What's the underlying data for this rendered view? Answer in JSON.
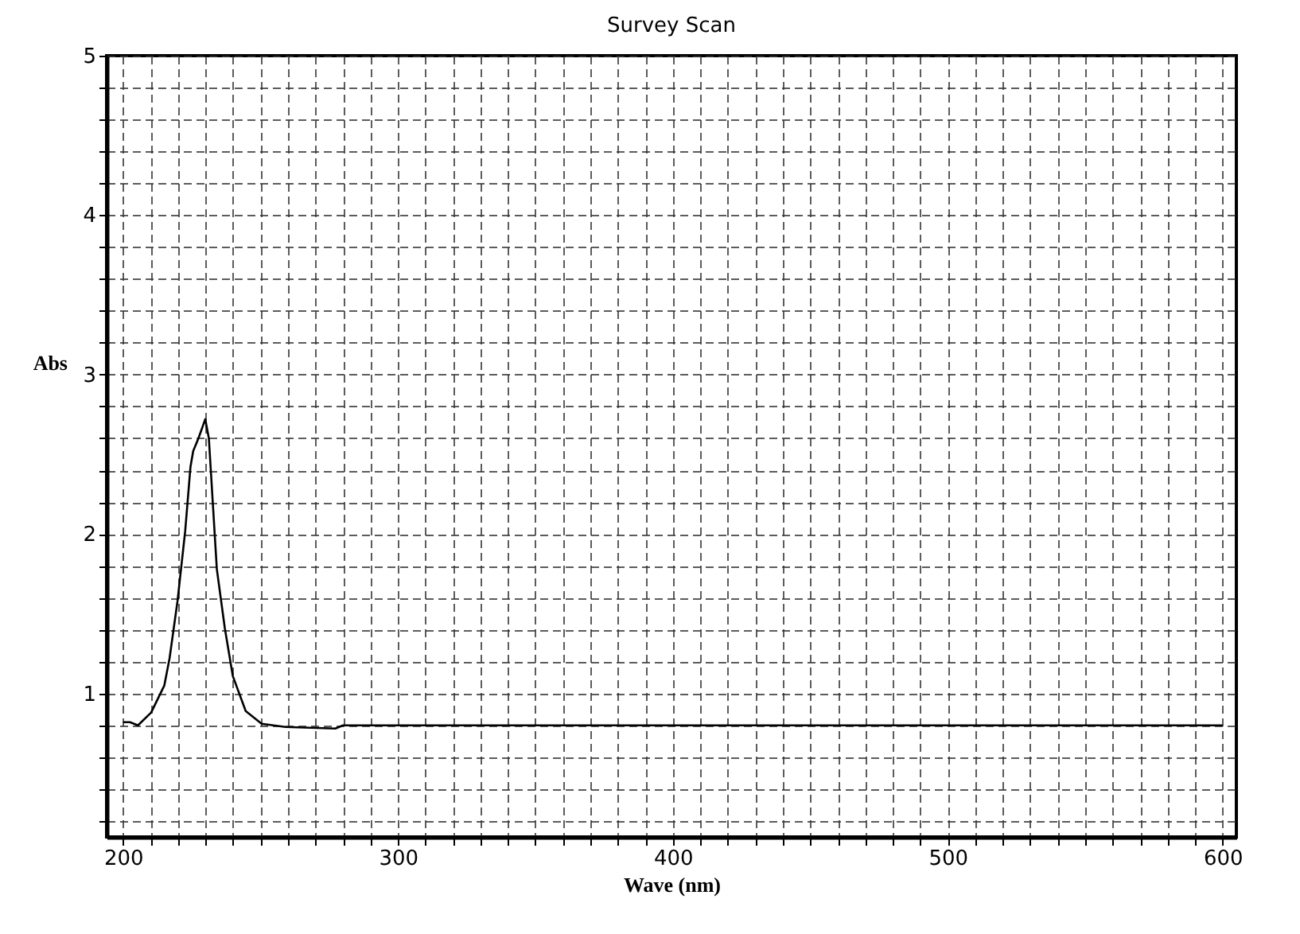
{
  "chart_data": {
    "type": "line",
    "title": "Survey Scan",
    "xlabel": "Wave (nm)",
    "ylabel": "Abs",
    "x": [
      200,
      202.5,
      205.4,
      210.2,
      215,
      216.9,
      219.8,
      222.6,
      224.5,
      225.5,
      227.4,
      229.9,
      231.2,
      234.1,
      237,
      239.9,
      244.6,
      250.4,
      259,
      277.2,
      280,
      600
    ],
    "series": [
      {
        "color": "#000000",
        "values": [
          0.82,
          0.82,
          0.8,
          0.88,
          1.05,
          1.22,
          1.58,
          2.02,
          2.42,
          2.52,
          2.6,
          2.72,
          2.6,
          1.78,
          1.41,
          1.11,
          0.89,
          0.81,
          0.79,
          0.78,
          0.8,
          0.8
        ]
      }
    ],
    "xlim": [
      194,
      605
    ],
    "ylim": [
      0.1,
      5
    ],
    "xticks": [
      200,
      {
        "value": 210,
        "label": null
      },
      {
        "value": 220,
        "label": null
      },
      {
        "value": 230,
        "label": null
      },
      {
        "value": 240,
        "label": null
      },
      {
        "value": 250,
        "label": null
      },
      {
        "value": 260,
        "label": null
      },
      {
        "value": 270,
        "label": null
      },
      {
        "value": 280,
        "label": null
      },
      {
        "value": 290,
        "label": null
      },
      300,
      {
        "value": 310,
        "label": null
      },
      {
        "value": 320,
        "label": null
      },
      {
        "value": 330,
        "label": null
      },
      {
        "value": 340,
        "label": null
      },
      {
        "value": 350,
        "label": null
      },
      {
        "value": 360,
        "label": null
      },
      {
        "value": 370,
        "label": null
      },
      {
        "value": 380,
        "label": null
      },
      {
        "value": 390,
        "label": null
      },
      400,
      {
        "value": 410,
        "label": null
      },
      {
        "value": 420,
        "label": null
      },
      {
        "value": 430,
        "label": null
      },
      {
        "value": 440,
        "label": null
      },
      {
        "value": 450,
        "label": null
      },
      {
        "value": 460,
        "label": null
      },
      {
        "value": 470,
        "label": null
      },
      {
        "value": 480,
        "label": null
      },
      {
        "value": 490,
        "label": null
      },
      500,
      {
        "value": 510,
        "label": null
      },
      {
        "value": 520,
        "label": null
      },
      {
        "value": 530,
        "label": null
      },
      {
        "value": 540,
        "label": null
      },
      {
        "value": 550,
        "label": null
      },
      {
        "value": 560,
        "label": null
      },
      {
        "value": 570,
        "label": null
      },
      {
        "value": 580,
        "label": null
      },
      {
        "value": 590,
        "label": null
      },
      600
    ],
    "yticks": [
      {
        "value": 0.2,
        "label": null
      },
      {
        "value": 0.4,
        "label": null
      },
      {
        "value": 0.6,
        "label": null
      },
      {
        "value": 0.8,
        "label": null
      },
      1,
      {
        "value": 1.2,
        "label": null
      },
      {
        "value": 1.4,
        "label": null
      },
      {
        "value": 1.6,
        "label": null
      },
      {
        "value": 1.8,
        "label": null
      },
      2,
      {
        "value": 2.2,
        "label": null
      },
      {
        "value": 2.4,
        "label": null
      },
      {
        "value": 2.6,
        "label": null
      },
      {
        "value": 2.8,
        "label": null
      },
      3,
      {
        "value": 3.2,
        "label": null
      },
      {
        "value": 3.4,
        "label": null
      },
      {
        "value": 3.6,
        "label": null
      },
      {
        "value": 3.8,
        "label": null
      },
      4,
      {
        "value": 4.2,
        "label": null
      },
      {
        "value": 4.4,
        "label": null
      },
      {
        "value": 4.6,
        "label": null
      },
      {
        "value": 4.8,
        "label": null
      },
      5
    ],
    "grid": true,
    "line_style": "solid"
  }
}
